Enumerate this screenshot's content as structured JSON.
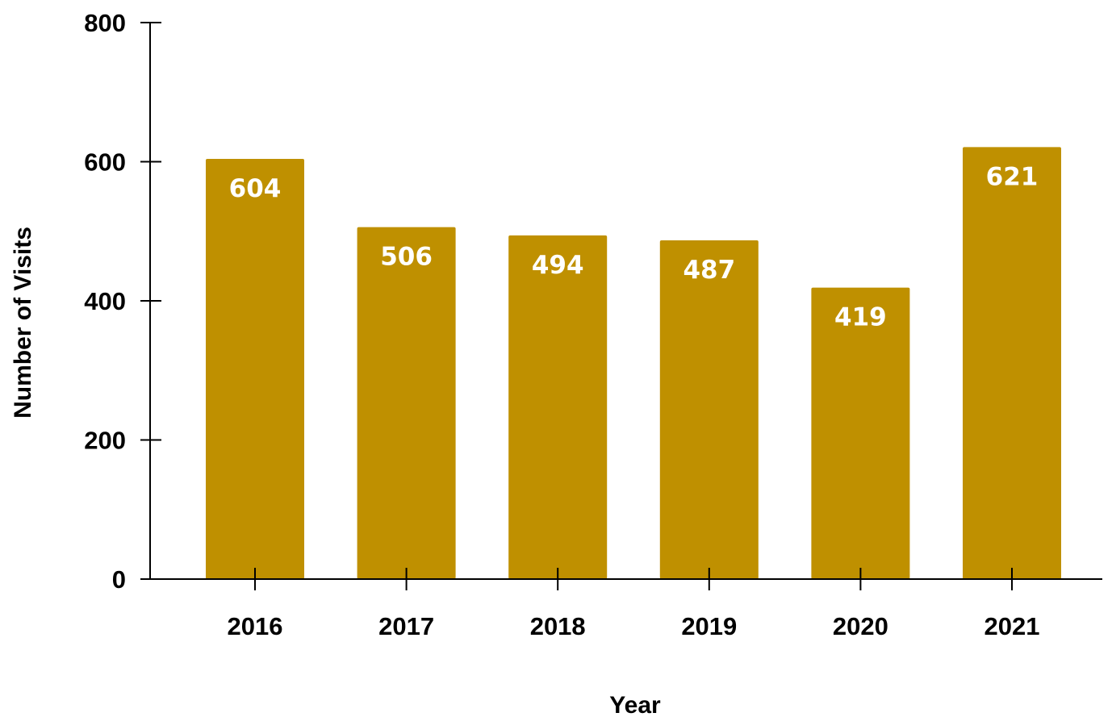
{
  "chart_data": {
    "type": "bar",
    "title": "",
    "xlabel": "Year",
    "ylabel": "Number of Visits",
    "categories": [
      "2016",
      "2017",
      "2018",
      "2019",
      "2020",
      "2021"
    ],
    "values": [
      604,
      506,
      494,
      487,
      419,
      621
    ],
    "data_labels": [
      "604",
      "506",
      "494",
      "487",
      "419",
      "621"
    ],
    "ylim": [
      0,
      800
    ],
    "yticks": [
      0,
      200,
      400,
      600,
      800
    ],
    "ytick_labels": [
      "0",
      "200",
      "400",
      "600",
      "800"
    ],
    "grid": false,
    "legend": "none",
    "bar_color": "#bf9000",
    "label_color": "#ffffff",
    "axis_color": "#000000"
  }
}
